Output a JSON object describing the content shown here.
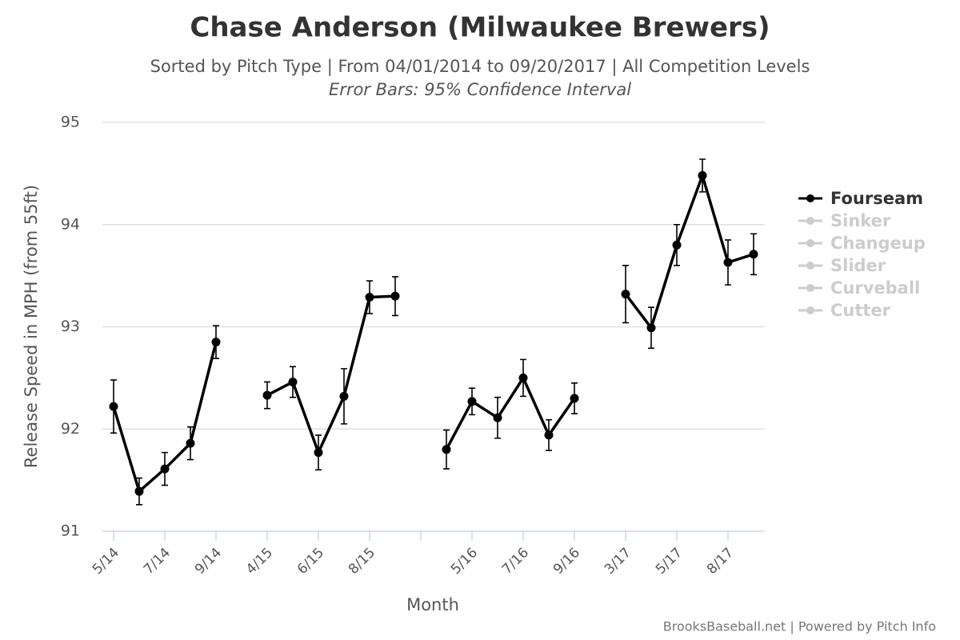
{
  "chart_data": {
    "type": "line",
    "title": "Chase Anderson (Milwaukee Brewers)",
    "subtitle": "Sorted by Pitch Type | From 04/01/2014 to 09/20/2017 | All Competition Levels",
    "annotation": "Error Bars: 95% Confidence Interval",
    "xlabel": "Month",
    "ylabel": "Release Speed in MPH (from 55ft)",
    "credit": "BrooksBaseball.net | Powered by Pitch Info",
    "categories": [
      "5/14",
      null,
      "7/14",
      null,
      "9/14",
      null,
      "4/15",
      null,
      "6/15",
      null,
      "8/15",
      null,
      null,
      null,
      "5/16",
      null,
      "7/16",
      null,
      "9/16",
      null,
      "3/17",
      null,
      "5/17",
      null,
      "8/17",
      null
    ],
    "ylim": [
      91,
      95
    ],
    "yticks": [
      91,
      92,
      93,
      94,
      95
    ],
    "grid": true,
    "legend": "right",
    "series": [
      {
        "name": "Fourseam",
        "color": "#000000",
        "values": [
          92.22,
          91.39,
          91.61,
          91.86,
          92.85,
          null,
          92.33,
          92.46,
          91.77,
          92.32,
          93.29,
          93.3,
          null,
          91.8,
          92.27,
          92.11,
          92.5,
          91.94,
          92.3,
          null,
          93.32,
          92.99,
          93.8,
          94.48,
          93.63,
          93.71
        ],
        "errors": [
          0.26,
          0.13,
          0.16,
          0.16,
          0.16,
          null,
          0.13,
          0.15,
          0.17,
          0.27,
          0.16,
          0.19,
          null,
          0.19,
          0.13,
          0.2,
          0.18,
          0.15,
          0.15,
          null,
          0.28,
          0.2,
          0.2,
          0.16,
          0.22,
          0.2
        ]
      }
    ],
    "hidden_series": [
      {
        "name": "Sinker",
        "color": "#cccccc"
      },
      {
        "name": "Changeup",
        "color": "#cccccc"
      },
      {
        "name": "Slider",
        "color": "#cccccc"
      },
      {
        "name": "Curveball",
        "color": "#cccccc"
      },
      {
        "name": "Cutter",
        "color": "#cccccc"
      }
    ]
  }
}
